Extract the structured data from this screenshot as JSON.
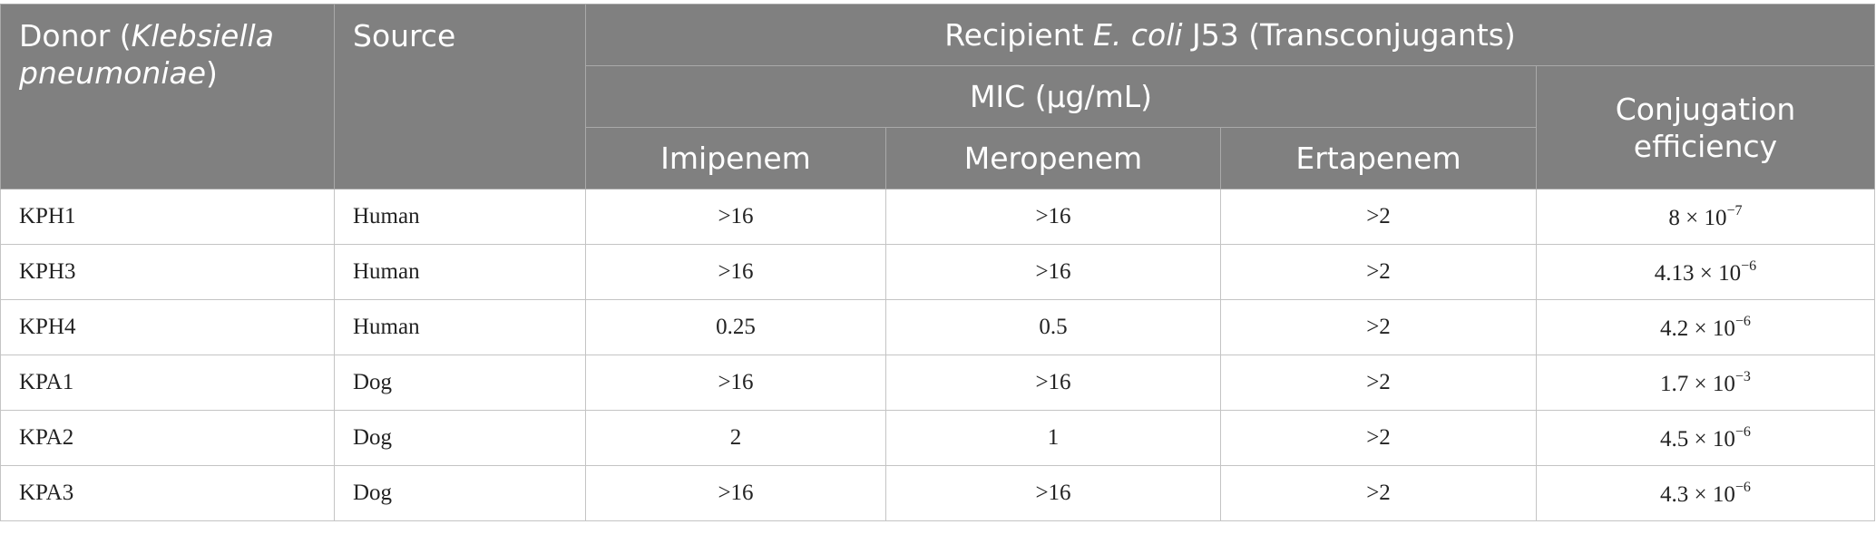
{
  "header": {
    "donor_prefix": "Donor (",
    "donor_species": "Klebsiella pneumoniae",
    "donor_suffix": ")",
    "source": "Source",
    "recipient_prefix": "Recipient ",
    "recipient_species": "E. coli",
    "recipient_suffix": " J53 (Transconjugants)",
    "mic": "MIC (μg/mL)",
    "conjugation": "Conjugation efficiency",
    "imipenem": "Imipenem",
    "meropenem": "Meropenem",
    "ertapenem": "Ertapenem"
  },
  "rows": [
    {
      "donor": "KPH1",
      "source": "Human",
      "imipenem": ">16",
      "meropenem": ">16",
      "ertapenem": ">2",
      "eff_mantissa": "8 × 10",
      "eff_exp": "−7"
    },
    {
      "donor": "KPH3",
      "source": "Human",
      "imipenem": ">16",
      "meropenem": ">16",
      "ertapenem": ">2",
      "eff_mantissa": "4.13 × 10",
      "eff_exp": "−6"
    },
    {
      "donor": "KPH4",
      "source": "Human",
      "imipenem": "0.25",
      "meropenem": "0.5",
      "ertapenem": ">2",
      "eff_mantissa": "4.2 × 10",
      "eff_exp": "−6"
    },
    {
      "donor": "KPA1",
      "source": "Dog",
      "imipenem": ">16",
      "meropenem": ">16",
      "ertapenem": ">2",
      "eff_mantissa": "1.7 × 10",
      "eff_exp": "−3"
    },
    {
      "donor": "KPA2",
      "source": "Dog",
      "imipenem": "2",
      "meropenem": "1",
      "ertapenem": ">2",
      "eff_mantissa": "4.5 × 10",
      "eff_exp": "−6"
    },
    {
      "donor": "KPA3",
      "source": "Dog",
      "imipenem": ">16",
      "meropenem": ">16",
      "ertapenem": ">2",
      "eff_mantissa": "4.3 × 10",
      "eff_exp": "−6"
    }
  ]
}
